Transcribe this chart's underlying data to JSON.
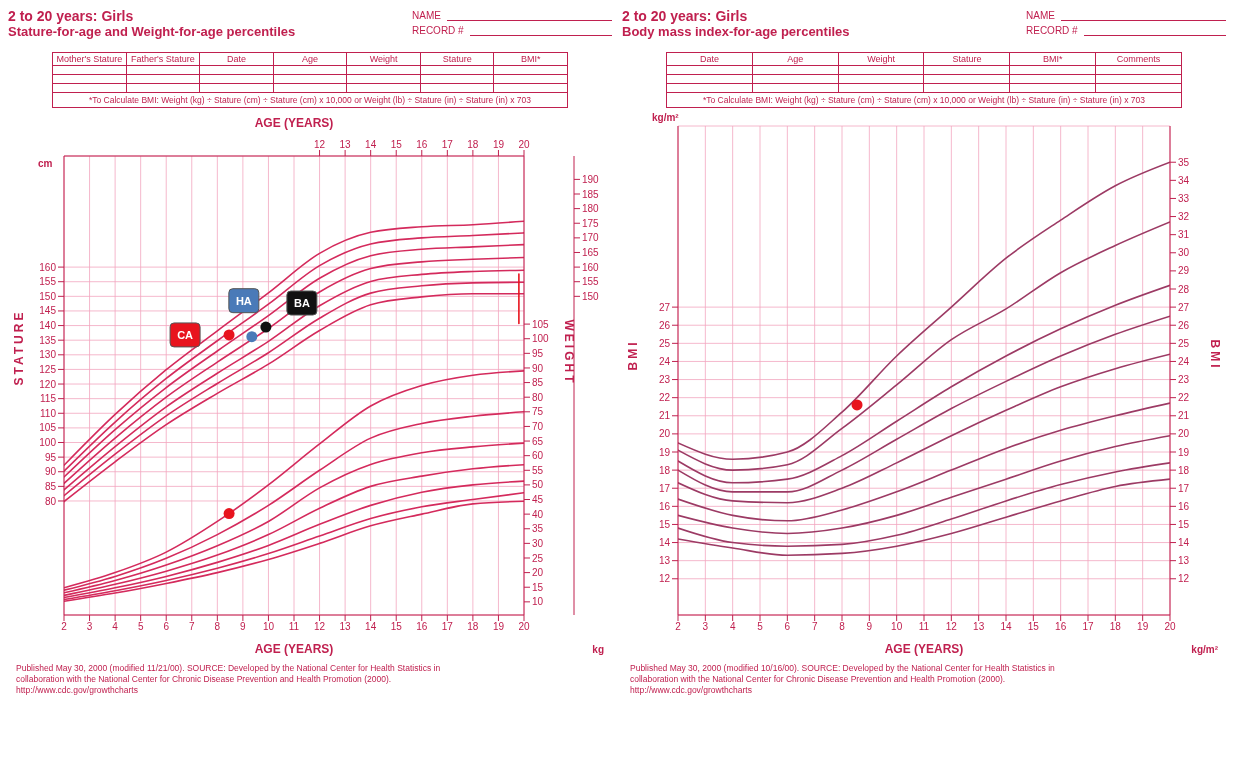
{
  "chart_data": [
    {
      "type": "line",
      "title": "2 to 20 years: Girls",
      "subtitle": "Stature-for-age and Weight-for-age percentiles",
      "xlabel": "AGE (YEARS)",
      "x2label": "AGE (YEARS)",
      "ylabel": "STATURE",
      "y2label": "WEIGHT",
      "annotations": [
        "NAME",
        "RECORD #",
        "cm",
        "kg",
        "Mother's Stature",
        "Father's Stature",
        "Date",
        "Age",
        "Weight",
        "Stature",
        "BMI*",
        "*To Calculate BMI: Weight (kg) ÷ Stature (cm) ÷ Stature (cm) x 10,000 or Weight (lb) ÷ Stature (in) ÷ Stature (in) x 703",
        "Published May 30, 2000 (modified 11/21/00). SOURCE: Developed by the National Center for Health Statistics in collaboration with the National Center for Chronic Disease Prevention and Health Promotion (2000). http://www.cdc.gov/growthcharts"
      ],
      "x": [
        2,
        4,
        6,
        8,
        10,
        12,
        14,
        16,
        18,
        20
      ],
      "xlim": [
        2,
        20
      ],
      "xticks": [
        2,
        3,
        4,
        5,
        6,
        7,
        8,
        9,
        10,
        11,
        12,
        13,
        14,
        15,
        16,
        17,
        18,
        19,
        20
      ],
      "x2lim": [
        2,
        20
      ],
      "x2ticks": [
        12,
        13,
        14,
        15,
        16,
        17,
        18,
        19,
        20
      ],
      "ylim": [
        41,
        198
      ],
      "yticks": [
        80,
        85,
        90,
        95,
        100,
        105,
        110,
        115,
        120,
        125,
        130,
        135,
        140,
        145,
        150,
        155,
        160
      ],
      "y2lim": [
        5.5,
        162.5
      ],
      "y2ticks": [
        10,
        15,
        20,
        25,
        30,
        35,
        40,
        45,
        50,
        55,
        60,
        65,
        70,
        75,
        80,
        85,
        90,
        95,
        100,
        105
      ],
      "y3lim": [
        41,
        198
      ],
      "y3ticks": [
        150,
        155,
        160,
        165,
        170,
        175,
        180,
        185,
        190
      ],
      "grid": true,
      "series": [
        {
          "color": "#d42a5c",
          "values": [
            79.8,
            93.4,
            106.1,
            116.8,
            126.8,
            138.3,
            147.1,
            149.8,
            150.9,
            150.9
          ]
        },
        {
          "color": "#d42a5c",
          "values": [
            81.8,
            96.0,
            109.1,
            120.2,
            130.7,
            142.5,
            151.1,
            153.6,
            154.6,
            154.8
          ]
        },
        {
          "color": "#d42a5c",
          "values": [
            83.8,
            98.6,
            112.2,
            123.7,
            134.6,
            146.8,
            155.1,
            157.5,
            158.5,
            158.9
          ]
        },
        {
          "color": "#d42a5c",
          "values": [
            86.0,
            101.5,
            115.5,
            127.5,
            139.0,
            151.5,
            159.5,
            161.8,
            162.7,
            163.3
          ]
        },
        {
          "color": "#d42a5c",
          "values": [
            88.2,
            104.4,
            118.8,
            131.3,
            143.4,
            156.2,
            163.9,
            166.1,
            166.9,
            167.7
          ]
        },
        {
          "color": "#d42a5c",
          "values": [
            90.2,
            107.0,
            121.9,
            134.8,
            147.3,
            160.5,
            167.9,
            170.0,
            170.8,
            171.7
          ]
        },
        {
          "color": "#d42a5c",
          "values": [
            92.2,
            109.6,
            124.9,
            138.2,
            151.2,
            164.7,
            171.9,
            173.8,
            174.5,
            175.7
          ]
        },
        {
          "color": "#d42a5c",
          "axis": "y2",
          "values": [
            10.2,
            13.0,
            16.3,
            20.0,
            24.5,
            30.0,
            36.0,
            40.0,
            43.5,
            44.4
          ]
        },
        {
          "color": "#d42a5c",
          "axis": "y2",
          "values": [
            10.8,
            13.8,
            17.3,
            21.5,
            26.5,
            32.5,
            38.5,
            42.5,
            45.0,
            47.3
          ]
        },
        {
          "color": "#d42a5c",
          "axis": "y2",
          "values": [
            11.5,
            14.8,
            18.7,
            23.5,
            29.3,
            36.5,
            43.0,
            47.5,
            50.0,
            51.3
          ]
        },
        {
          "color": "#d42a5c",
          "axis": "y2",
          "values": [
            12.2,
            16.0,
            20.5,
            26.0,
            33.0,
            42.0,
            49.5,
            53.0,
            55.5,
            56.9
          ]
        },
        {
          "color": "#d42a5c",
          "axis": "y2",
          "values": [
            13.1,
            17.3,
            22.6,
            29.2,
            37.5,
            49.0,
            57.0,
            61.0,
            63.0,
            64.3
          ]
        },
        {
          "color": "#d42a5c",
          "axis": "y2",
          "values": [
            14.0,
            18.7,
            24.9,
            33.0,
            43.0,
            55.0,
            66.0,
            71.0,
            73.5,
            75.0
          ]
        },
        {
          "color": "#d42a5c",
          "axis": "y2",
          "values": [
            14.8,
            20.0,
            27.0,
            37.5,
            50.0,
            64.0,
            77.0,
            84.0,
            87.5,
            89.0
          ]
        },
        {
          "color": "#e8141e",
          "x": [
            19.8,
            19.8
          ],
          "values": [
            140.7,
            157.6
          ]
        },
        {
          "type": "scatter",
          "name": "CA",
          "color": "#e8141e",
          "marker": "circle",
          "x": [
            8.46
          ],
          "values": [
            136.8
          ]
        },
        {
          "type": "scatter",
          "name": "HA",
          "color": "#4a7ab8",
          "marker": "circle",
          "x": [
            9.35
          ],
          "values": [
            136.2
          ]
        },
        {
          "type": "scatter",
          "name": "BA",
          "color": "#111111",
          "marker": "circle",
          "x": [
            9.9
          ],
          "values": [
            139.5
          ]
        },
        {
          "type": "scatter",
          "color": "#e8141e",
          "marker": "circle",
          "axis": "y2",
          "x": [
            8.46
          ],
          "values": [
            40.2
          ]
        }
      ]
    },
    {
      "type": "line",
      "title": "2 to 20 years: Girls",
      "subtitle": "Body mass index-for-age percentiles",
      "xlabel": "AGE (YEARS)",
      "ylabel": "BMI",
      "y2label": "BMI",
      "annotations": [
        "NAME",
        "RECORD #",
        "kg/m²",
        "kg/m²",
        "Date",
        "Age",
        "Weight",
        "Stature",
        "BMI*",
        "Comments",
        "*To Calculate BMI: Weight (kg) ÷ Stature (cm) ÷ Stature (cm) x 10,000 or Weight (lb) ÷ Stature (in) ÷ Stature (in) x 703",
        "Published May 30, 2000 (modified 10/16/00). SOURCE: Developed by the National Center for Health Statistics in collaboration with the National Center for Chronic Disease Prevention and Health Promotion (2000). http://www.cdc.gov/growthcharts"
      ],
      "x": [
        2,
        4,
        6,
        8,
        10,
        12,
        14,
        16,
        18,
        20
      ],
      "xlim": [
        2,
        20
      ],
      "xticks": [
        2,
        3,
        4,
        5,
        6,
        7,
        8,
        9,
        10,
        11,
        12,
        13,
        14,
        15,
        16,
        17,
        18,
        19,
        20
      ],
      "ylim": [
        10,
        37
      ],
      "yticks": [
        12,
        13,
        14,
        15,
        16,
        17,
        18,
        19,
        20,
        21,
        22,
        23,
        24,
        25,
        26,
        27
      ],
      "y2lim": [
        10,
        37
      ],
      "y2ticks": [
        12,
        13,
        14,
        15,
        16,
        17,
        18,
        19,
        20,
        21,
        22,
        23,
        24,
        25,
        26,
        27,
        28,
        29,
        30,
        31,
        32,
        33,
        34,
        35
      ],
      "grid": true,
      "series": [
        {
          "color": "#9c3a64",
          "values": [
            14.2,
            13.7,
            13.3,
            13.4,
            13.8,
            14.5,
            15.4,
            16.3,
            17.1,
            17.5
          ]
        },
        {
          "color": "#9c3a64",
          "values": [
            14.8,
            14.0,
            13.8,
            13.9,
            14.4,
            15.3,
            16.3,
            17.2,
            17.9,
            18.4
          ]
        },
        {
          "color": "#9c3a64",
          "values": [
            15.5,
            14.8,
            14.5,
            14.8,
            15.5,
            16.5,
            17.5,
            18.5,
            19.3,
            19.9
          ]
        },
        {
          "color": "#9c3a64",
          "values": [
            16.4,
            15.5,
            15.2,
            15.8,
            16.8,
            18.0,
            19.2,
            20.2,
            21.0,
            21.7
          ]
        },
        {
          "color": "#9c3a64",
          "values": [
            17.3,
            16.3,
            16.2,
            17.0,
            18.4,
            19.9,
            21.3,
            22.6,
            23.6,
            24.4
          ]
        },
        {
          "color": "#9c3a64",
          "values": [
            18.0,
            16.8,
            16.8,
            18.0,
            19.7,
            21.4,
            22.9,
            24.3,
            25.5,
            26.5
          ]
        },
        {
          "color": "#9c3a64",
          "values": [
            18.5,
            17.3,
            17.5,
            18.8,
            20.7,
            22.6,
            24.3,
            25.8,
            27.1,
            28.2
          ]
        },
        {
          "color": "#9c3a64",
          "values": [
            19.1,
            18.0,
            18.3,
            20.3,
            22.7,
            25.2,
            26.9,
            28.9,
            30.4,
            31.7
          ]
        },
        {
          "color": "#9c3a64",
          "values": [
            19.5,
            18.6,
            19.0,
            21.2,
            24.3,
            27.0,
            29.7,
            31.8,
            33.7,
            35.0
          ]
        },
        {
          "type": "scatter",
          "color": "#e8141e",
          "marker": "circle",
          "x": [
            8.55
          ],
          "values": [
            21.6
          ]
        }
      ]
    }
  ]
}
